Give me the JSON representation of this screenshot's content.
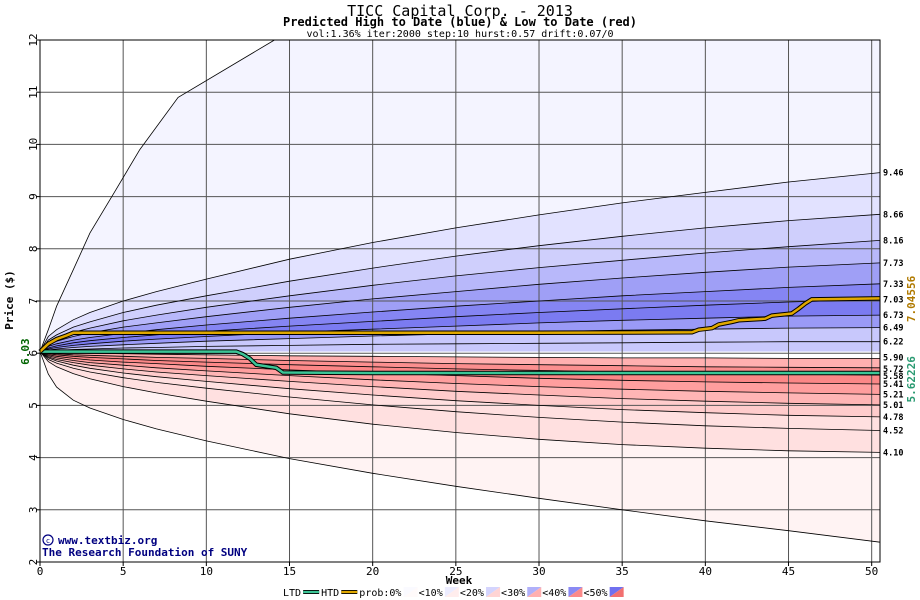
{
  "chart_data": {
    "type": "area",
    "title": "TICC Capital Corp. - 2013",
    "subtitle": "Predicted High to Date (blue) &  Low to Date (red)",
    "params": "vol:1.36% iter:2000 step:10 hurst:0.57 drift:0.07/0",
    "xlabel": "Week",
    "ylabel": "Price ($)",
    "xlim": [
      0,
      50.5
    ],
    "ylim": [
      2,
      12
    ],
    "xticks": [
      0,
      5,
      10,
      15,
      20,
      25,
      30,
      35,
      40,
      45,
      50
    ],
    "yticks": [
      2,
      3,
      4,
      5,
      6,
      7,
      8,
      9,
      10,
      11,
      12
    ],
    "grid": true,
    "start_price": 6.03,
    "start_label": "6.03",
    "x": [
      0,
      0.5,
      1,
      2,
      3,
      5,
      7,
      10,
      15,
      20,
      25,
      30,
      35,
      40,
      45,
      50.5
    ],
    "high_series": [
      {
        "end": 9.46,
        "label": "9.46",
        "values": [
          6.03,
          6.32,
          6.45,
          6.64,
          6.78,
          7.0,
          7.18,
          7.42,
          7.8,
          8.12,
          8.4,
          8.65,
          8.88,
          9.08,
          9.28,
          9.46
        ]
      },
      {
        "end": 8.66,
        "label": "8.66",
        "values": [
          6.03,
          6.25,
          6.35,
          6.5,
          6.6,
          6.78,
          6.92,
          7.1,
          7.38,
          7.63,
          7.86,
          8.06,
          8.24,
          8.4,
          8.54,
          8.66
        ]
      },
      {
        "end": 8.16,
        "label": "8.16",
        "values": [
          6.03,
          6.2,
          6.28,
          6.4,
          6.48,
          6.62,
          6.73,
          6.88,
          7.1,
          7.3,
          7.48,
          7.64,
          7.78,
          7.92,
          8.04,
          8.16
        ]
      },
      {
        "end": 7.73,
        "label": "7.73",
        "values": [
          6.03,
          6.16,
          6.23,
          6.32,
          6.39,
          6.5,
          6.58,
          6.7,
          6.88,
          7.04,
          7.18,
          7.32,
          7.44,
          7.55,
          7.65,
          7.73
        ]
      },
      {
        "end": 7.33,
        "label": "7.33",
        "values": [
          6.03,
          6.13,
          6.18,
          6.25,
          6.3,
          6.38,
          6.45,
          6.54,
          6.67,
          6.79,
          6.9,
          7.0,
          7.1,
          7.18,
          7.26,
          7.33
        ]
      },
      {
        "end": 7.03,
        "label": "7.03",
        "values": [
          6.03,
          6.1,
          6.14,
          6.2,
          6.24,
          6.3,
          6.35,
          6.42,
          6.52,
          6.61,
          6.7,
          6.78,
          6.85,
          6.92,
          6.98,
          7.03
        ]
      },
      {
        "end": 6.73,
        "label": "6.73",
        "values": [
          6.03,
          6.08,
          6.11,
          6.15,
          6.18,
          6.23,
          6.27,
          6.32,
          6.4,
          6.46,
          6.52,
          6.58,
          6.63,
          6.67,
          6.71,
          6.73
        ]
      },
      {
        "end": 6.49,
        "label": "6.49",
        "values": [
          6.03,
          6.06,
          6.08,
          6.11,
          6.13,
          6.16,
          6.19,
          6.23,
          6.28,
          6.33,
          6.37,
          6.41,
          6.44,
          6.46,
          6.48,
          6.49
        ]
      },
      {
        "end": 6.22,
        "label": "6.22",
        "values": [
          6.03,
          6.04,
          6.05,
          6.07,
          6.08,
          6.1,
          6.11,
          6.13,
          6.15,
          6.17,
          6.18,
          6.19,
          6.2,
          6.21,
          6.22,
          6.22
        ]
      }
    ],
    "high_max": {
      "values": [
        6.03,
        6.45,
        6.9,
        7.6,
        8.3,
        9.1,
        9.9,
        10.9,
        12.0
      ]
    },
    "high_max_x": [
      0,
      0.5,
      1,
      2,
      3,
      4.5,
      6,
      8.3,
      14.1
    ],
    "low_series": [
      {
        "end": 5.9,
        "label": "5.90",
        "values": [
          6.03,
          6.02,
          6.02,
          6.01,
          6.0,
          5.99,
          5.98,
          5.97,
          5.95,
          5.94,
          5.93,
          5.92,
          5.91,
          5.91,
          5.9,
          5.9
        ]
      },
      {
        "end": 5.72,
        "label": "5.72",
        "values": [
          6.03,
          6.0,
          5.99,
          5.97,
          5.96,
          5.94,
          5.92,
          5.9,
          5.86,
          5.83,
          5.8,
          5.78,
          5.76,
          5.74,
          5.73,
          5.72
        ]
      },
      {
        "end": 5.58,
        "label": "5.58",
        "values": [
          6.03,
          5.99,
          5.97,
          5.94,
          5.92,
          5.89,
          5.86,
          5.83,
          5.78,
          5.74,
          5.7,
          5.67,
          5.64,
          5.62,
          5.6,
          5.58
        ]
      },
      {
        "end": 5.41,
        "label": "5.41",
        "values": [
          6.03,
          5.97,
          5.94,
          5.9,
          5.87,
          5.83,
          5.8,
          5.75,
          5.68,
          5.62,
          5.57,
          5.52,
          5.48,
          5.45,
          5.43,
          5.41
        ]
      },
      {
        "end": 5.21,
        "label": "5.21",
        "values": [
          6.03,
          5.95,
          5.91,
          5.86,
          5.82,
          5.77,
          5.72,
          5.66,
          5.57,
          5.49,
          5.42,
          5.36,
          5.31,
          5.27,
          5.24,
          5.21
        ]
      },
      {
        "end": 5.01,
        "label": "5.01",
        "values": [
          6.03,
          5.93,
          5.88,
          5.82,
          5.77,
          5.7,
          5.64,
          5.57,
          5.46,
          5.36,
          5.27,
          5.2,
          5.13,
          5.08,
          5.04,
          5.01
        ]
      },
      {
        "end": 4.78,
        "label": "4.78",
        "values": [
          6.03,
          5.91,
          5.85,
          5.77,
          5.71,
          5.62,
          5.55,
          5.46,
          5.32,
          5.2,
          5.09,
          5.0,
          4.92,
          4.86,
          4.81,
          4.78
        ]
      },
      {
        "end": 4.52,
        "label": "4.52",
        "values": [
          6.03,
          5.88,
          5.81,
          5.71,
          5.64,
          5.53,
          5.44,
          5.33,
          5.16,
          5.01,
          4.88,
          4.77,
          4.68,
          4.61,
          4.56,
          4.52
        ]
      },
      {
        "end": 4.1,
        "label": "4.10",
        "values": [
          6.03,
          5.84,
          5.74,
          5.61,
          5.51,
          5.36,
          5.24,
          5.08,
          4.84,
          4.64,
          4.48,
          4.35,
          4.25,
          4.18,
          4.13,
          4.1
        ]
      }
    ],
    "low_min": {
      "values": [
        6.03,
        5.6,
        5.35,
        5.1,
        4.95,
        4.73,
        4.55,
        4.32,
        3.98,
        3.7,
        3.45,
        3.22,
        3.0,
        2.79,
        2.6,
        2.38
      ]
    },
    "htd_line": {
      "name": "HTD",
      "final_label": "7.04556",
      "x": [
        0,
        0.5,
        1,
        1.6,
        2,
        10,
        20,
        30,
        39.2,
        39.6,
        40.4,
        40.8,
        41.6,
        42,
        43.6,
        44,
        45.2,
        45.6,
        46,
        46.4,
        50.5
      ],
      "values": [
        6.03,
        6.18,
        6.27,
        6.34,
        6.39,
        6.39,
        6.39,
        6.39,
        6.4,
        6.45,
        6.48,
        6.55,
        6.6,
        6.63,
        6.66,
        6.72,
        6.76,
        6.85,
        6.95,
        7.03,
        7.05
      ]
    },
    "ltd_line": {
      "name": "LTD",
      "final_label": "5.62226",
      "x": [
        0,
        11.8,
        12.2,
        12.6,
        13.0,
        14.2,
        14.6,
        20,
        30,
        40,
        50.5
      ],
      "values": [
        6.03,
        6.03,
        5.98,
        5.9,
        5.78,
        5.72,
        5.63,
        5.62,
        5.62,
        5.62,
        5.62
      ]
    },
    "credits": [
      "www.textbiz.org",
      "The Research Foundation of SUNY"
    ],
    "legend": {
      "items": [
        "LTD",
        "HTD",
        "prob:0%",
        "<10%",
        "<20%",
        "<30%",
        "<40%",
        "<50%"
      ]
    },
    "colors": {
      "blue_bands": [
        "#f4f4ff",
        "#e2e2ff",
        "#cfcffc",
        "#b8b8fa",
        "#9f9ff6",
        "#8585f3",
        "#7b7bf1",
        "#9a9af6",
        "#c8c8fc"
      ],
      "red_bands": [
        "#fff3f3",
        "#ffe0e0",
        "#ffcccc",
        "#ffb5b5",
        "#ff9e9e",
        "#fb8787",
        "#fb8f8f",
        "#ffb0b0",
        "#ffd8d8"
      ],
      "ltd": "#3cc596",
      "htd": "#e0a800",
      "final_high_label": "#b07a00",
      "final_low_label": "#2a9a72",
      "start_label": "#006400"
    }
  }
}
